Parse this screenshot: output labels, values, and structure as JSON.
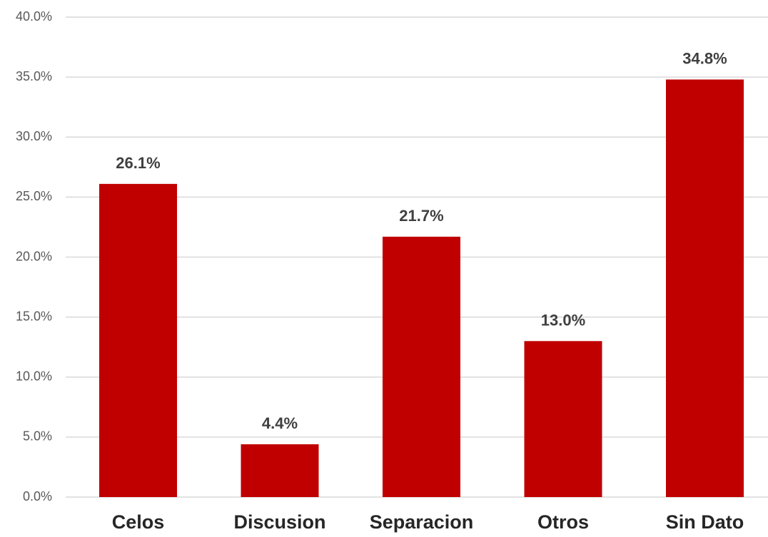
{
  "chart_data": {
    "type": "bar",
    "categories": [
      "Celos",
      "Discusion",
      "Separacion",
      "Otros",
      "Sin Dato"
    ],
    "values": [
      26.1,
      4.4,
      21.7,
      13.0,
      34.8
    ],
    "data_labels": [
      "26.1%",
      "4.4%",
      "21.7%",
      "13.0%",
      "34.8%"
    ],
    "y_ticks": [
      0,
      5,
      10,
      15,
      20,
      25,
      30,
      35,
      40
    ],
    "y_tick_labels": [
      "0.0%",
      "5.0%",
      "10.0%",
      "15.0%",
      "20.0%",
      "25.0%",
      "30.0%",
      "35.0%",
      "40.0%"
    ],
    "ylim": [
      0,
      40
    ],
    "grid": true,
    "legend": "none",
    "bar_color": "#c00000",
    "grid_color": "#d9d9d9"
  }
}
